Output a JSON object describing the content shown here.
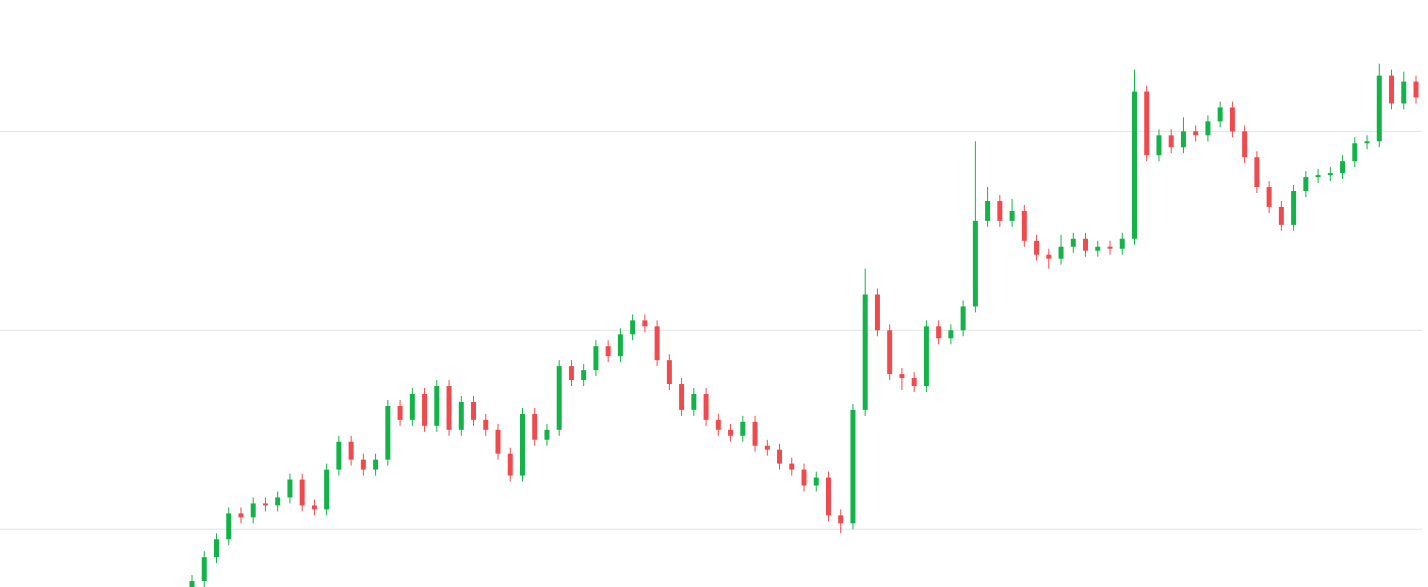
{
  "chart_data": {
    "type": "candlestick",
    "open": [
      0.7,
      0.74,
      0.86,
      0.95,
      1.08,
      1.06,
      1.13,
      1.12,
      1.16,
      1.25,
      1.12,
      1.1,
      1.3,
      1.44,
      1.35,
      1.3,
      1.35,
      1.62,
      1.55,
      1.68,
      1.52,
      1.72,
      1.5,
      1.64,
      1.55,
      1.5,
      1.38,
      1.27,
      1.58,
      1.45,
      1.5,
      1.82,
      1.75,
      1.8,
      1.92,
      1.87,
      1.98,
      2.05,
      2.02,
      1.85,
      1.73,
      1.6,
      1.68,
      1.55,
      1.5,
      1.47,
      1.54,
      1.42,
      1.4,
      1.33,
      1.3,
      1.22,
      1.26,
      1.07,
      1.03,
      1.6,
      2.18,
      2.0,
      1.78,
      1.76,
      1.72,
      2.02,
      1.96,
      2.0,
      2.12,
      2.55,
      2.65,
      2.55,
      2.6,
      2.45,
      2.38,
      2.36,
      2.42,
      2.46,
      2.4,
      2.42,
      2.41,
      2.46,
      3.2,
      2.88,
      2.98,
      2.92,
      3.0,
      2.98,
      3.05,
      3.12,
      3.0,
      2.87,
      2.72,
      2.62,
      2.53,
      2.7,
      2.77,
      2.78,
      2.79,
      2.85,
      2.94,
      2.95,
      3.28,
      3.14,
      3.25
    ],
    "high": [
      0.77,
      0.89,
      0.98,
      1.11,
      1.11,
      1.16,
      1.16,
      1.19,
      1.28,
      1.28,
      1.15,
      1.33,
      1.47,
      1.47,
      1.38,
      1.38,
      1.65,
      1.65,
      1.71,
      1.71,
      1.75,
      1.75,
      1.67,
      1.67,
      1.58,
      1.53,
      1.41,
      1.61,
      1.61,
      1.53,
      1.85,
      1.85,
      1.83,
      1.95,
      1.95,
      2.01,
      2.08,
      2.08,
      2.05,
      1.88,
      1.76,
      1.71,
      1.71,
      1.58,
      1.53,
      1.57,
      1.57,
      1.45,
      1.43,
      1.36,
      1.33,
      1.29,
      1.29,
      1.1,
      1.63,
      2.31,
      2.21,
      2.03,
      1.81,
      1.79,
      2.05,
      2.05,
      2.03,
      2.15,
      2.95,
      2.72,
      2.68,
      2.66,
      2.63,
      2.48,
      2.41,
      2.48,
      2.49,
      2.49,
      2.45,
      2.45,
      2.49,
      3.31,
      3.23,
      3.01,
      3.01,
      3.07,
      3.03,
      3.08,
      3.15,
      3.15,
      3.03,
      2.9,
      2.75,
      2.65,
      2.73,
      2.8,
      2.81,
      2.82,
      2.88,
      2.97,
      2.98,
      3.34,
      3.31,
      3.3,
      3.28
    ],
    "low": [
      0.67,
      0.71,
      0.83,
      0.92,
      1.03,
      1.03,
      1.09,
      1.09,
      1.13,
      1.09,
      1.07,
      1.07,
      1.27,
      1.32,
      1.27,
      1.27,
      1.32,
      1.52,
      1.52,
      1.49,
      1.49,
      1.47,
      1.47,
      1.52,
      1.47,
      1.35,
      1.24,
      1.24,
      1.42,
      1.42,
      1.47,
      1.72,
      1.72,
      1.77,
      1.84,
      1.84,
      1.95,
      1.99,
      1.82,
      1.7,
      1.57,
      1.57,
      1.52,
      1.47,
      1.44,
      1.44,
      1.39,
      1.37,
      1.3,
      1.27,
      1.19,
      1.19,
      1.04,
      0.98,
      1.0,
      1.57,
      1.97,
      1.75,
      1.7,
      1.69,
      1.69,
      1.93,
      1.93,
      1.97,
      2.09,
      2.52,
      2.52,
      2.52,
      2.42,
      2.35,
      2.31,
      2.33,
      2.39,
      2.37,
      2.37,
      2.38,
      2.38,
      2.43,
      2.85,
      2.85,
      2.89,
      2.89,
      2.95,
      2.95,
      3.02,
      2.97,
      2.84,
      2.69,
      2.59,
      2.5,
      2.5,
      2.67,
      2.74,
      2.75,
      2.76,
      2.82,
      2.91,
      2.92,
      3.11,
      3.11,
      3.14
    ],
    "close": [
      0.74,
      0.86,
      0.95,
      1.08,
      1.06,
      1.13,
      1.12,
      1.16,
      1.25,
      1.12,
      1.1,
      1.3,
      1.44,
      1.35,
      1.3,
      1.35,
      1.62,
      1.55,
      1.68,
      1.52,
      1.72,
      1.5,
      1.64,
      1.55,
      1.5,
      1.38,
      1.27,
      1.58,
      1.45,
      1.5,
      1.82,
      1.75,
      1.8,
      1.92,
      1.87,
      1.98,
      2.05,
      2.02,
      1.85,
      1.73,
      1.6,
      1.68,
      1.55,
      1.5,
      1.47,
      1.54,
      1.42,
      1.4,
      1.33,
      1.3,
      1.22,
      1.26,
      1.07,
      1.03,
      1.6,
      2.18,
      2.0,
      1.78,
      1.76,
      1.72,
      2.02,
      1.96,
      2.0,
      2.12,
      2.55,
      2.65,
      2.55,
      2.6,
      2.45,
      2.38,
      2.36,
      2.42,
      2.46,
      2.4,
      2.42,
      2.41,
      2.46,
      3.2,
      2.88,
      2.98,
      2.92,
      3.0,
      2.98,
      3.05,
      3.12,
      3.0,
      2.87,
      2.72,
      2.62,
      2.53,
      2.7,
      2.77,
      2.78,
      2.79,
      2.85,
      2.94,
      2.95,
      3.28,
      3.14,
      3.25,
      3.17
    ],
    "up_color": "#13b34a",
    "down_color": "#ef4b4f",
    "ylim": [
      0.71,
      3.66
    ],
    "yticks": [
      1,
      2,
      3
    ],
    "grid": true
  }
}
